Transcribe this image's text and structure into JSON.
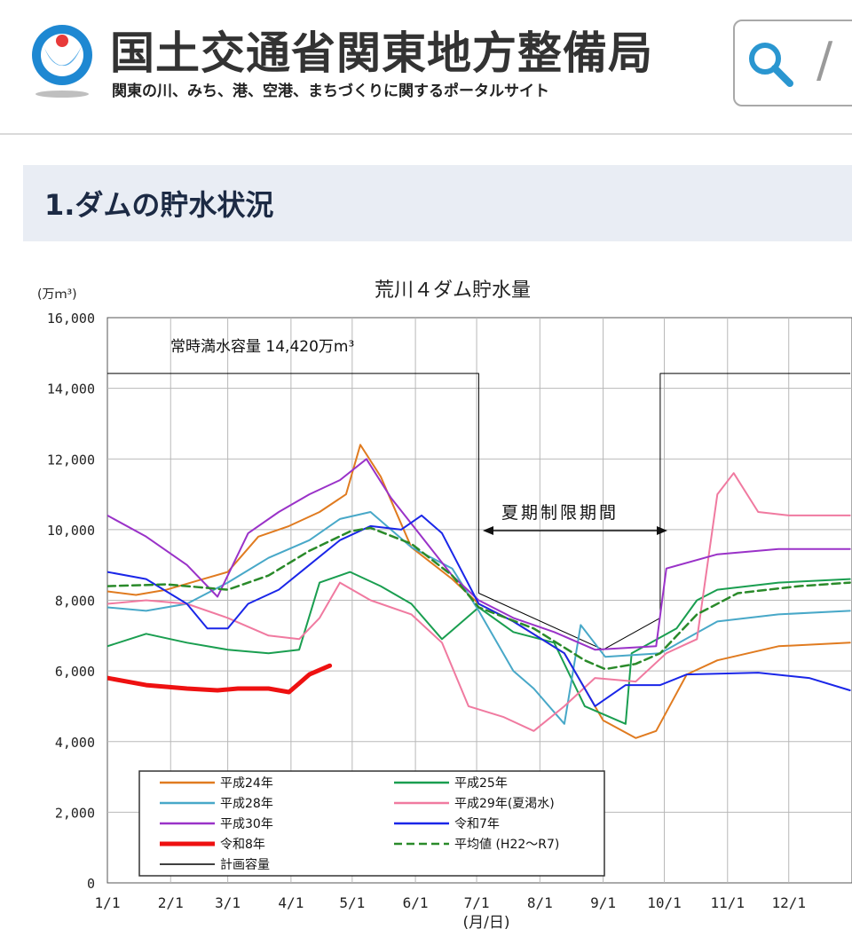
{
  "header": {
    "site_title": "国土交通省関東地方整備局",
    "site_subtitle": "関東の川、みち、港、空港、まちづくりに関するポータルサイト",
    "search_separator": "/"
  },
  "section": {
    "title": "1.ダムの貯水状況"
  },
  "chart_data": {
    "type": "line",
    "title": "荒川４ダム貯水量",
    "ylabel": "(万ｍ³)",
    "xlabel": "(月/日)",
    "ylim": [
      0,
      16000
    ],
    "y_ticks": [
      "0",
      "2,000",
      "4,000",
      "6,000",
      "8,000",
      "10,000",
      "12,000",
      "14,000",
      "16,000"
    ],
    "x_ticks": [
      "1/1",
      "2/1",
      "3/1",
      "4/1",
      "5/1",
      "6/1",
      "7/1",
      "8/1",
      "9/1",
      "10/1",
      "11/1",
      "12/1"
    ],
    "annotations": {
      "full_capacity": "常時満水容量 14,420万m³",
      "summer_limit": "夏期制限期間"
    },
    "legend": [
      "平成24年",
      "平成25年",
      "平成28年",
      "平成29年(夏渇水)",
      "平成30年",
      "令和7年",
      "令和8年",
      "平均値 (H22～R7)",
      "計画容量"
    ],
    "series": [
      {
        "name": "計画容量",
        "color": "#000000",
        "width": 1,
        "dash": "",
        "points": [
          [
            1,
            14420
          ],
          [
            183,
            14420
          ],
          [
            183,
            8200
          ],
          [
            244,
            6600
          ],
          [
            272,
            7500
          ],
          [
            272,
            14420
          ],
          [
            365,
            14420
          ]
        ]
      },
      {
        "name": "平成24年",
        "color": "#e07b20",
        "width": 2,
        "dash": "",
        "points": [
          [
            1,
            8250
          ],
          [
            15,
            8150
          ],
          [
            30,
            8300
          ],
          [
            45,
            8550
          ],
          [
            60,
            8800
          ],
          [
            75,
            9800
          ],
          [
            90,
            10100
          ],
          [
            105,
            10500
          ],
          [
            118,
            11000
          ],
          [
            125,
            12400
          ],
          [
            135,
            11500
          ],
          [
            150,
            9500
          ],
          [
            170,
            8600
          ],
          [
            183,
            7900
          ],
          [
            200,
            7400
          ],
          [
            225,
            6500
          ],
          [
            244,
            4600
          ],
          [
            260,
            4100
          ],
          [
            270,
            4300
          ],
          [
            285,
            5900
          ],
          [
            300,
            6300
          ],
          [
            330,
            6700
          ],
          [
            365,
            6800
          ]
        ]
      },
      {
        "name": "平成25年",
        "color": "#1a9e50",
        "width": 2,
        "dash": "",
        "points": [
          [
            1,
            6700
          ],
          [
            20,
            7050
          ],
          [
            40,
            6800
          ],
          [
            60,
            6600
          ],
          [
            80,
            6500
          ],
          [
            95,
            6600
          ],
          [
            105,
            8500
          ],
          [
            120,
            8800
          ],
          [
            135,
            8400
          ],
          [
            150,
            7900
          ],
          [
            165,
            6900
          ],
          [
            183,
            7800
          ],
          [
            200,
            7100
          ],
          [
            220,
            6800
          ],
          [
            235,
            5000
          ],
          [
            255,
            4500
          ],
          [
            258,
            6500
          ],
          [
            280,
            7200
          ],
          [
            290,
            8000
          ],
          [
            300,
            8300
          ],
          [
            330,
            8500
          ],
          [
            365,
            8600
          ]
        ]
      },
      {
        "name": "平成28年",
        "color": "#48a8c8",
        "width": 2,
        "dash": "",
        "points": [
          [
            1,
            7800
          ],
          [
            20,
            7700
          ],
          [
            40,
            7900
          ],
          [
            60,
            8500
          ],
          [
            80,
            9200
          ],
          [
            100,
            9700
          ],
          [
            115,
            10300
          ],
          [
            130,
            10500
          ],
          [
            150,
            9500
          ],
          [
            170,
            8900
          ],
          [
            183,
            7700
          ],
          [
            200,
            6000
          ],
          [
            210,
            5500
          ],
          [
            225,
            4500
          ],
          [
            233,
            7300
          ],
          [
            245,
            6400
          ],
          [
            272,
            6500
          ],
          [
            300,
            7400
          ],
          [
            330,
            7600
          ],
          [
            365,
            7700
          ]
        ]
      },
      {
        "name": "平成29年(夏渇水)",
        "color": "#f07aa0",
        "width": 2,
        "dash": "",
        "points": [
          [
            1,
            7900
          ],
          [
            20,
            8000
          ],
          [
            40,
            7900
          ],
          [
            60,
            7500
          ],
          [
            80,
            7000
          ],
          [
            95,
            6900
          ],
          [
            105,
            7500
          ],
          [
            115,
            8500
          ],
          [
            130,
            8000
          ],
          [
            150,
            7600
          ],
          [
            165,
            6800
          ],
          [
            178,
            5000
          ],
          [
            195,
            4700
          ],
          [
            210,
            4300
          ],
          [
            225,
            5000
          ],
          [
            240,
            5800
          ],
          [
            260,
            5700
          ],
          [
            275,
            6500
          ],
          [
            290,
            6900
          ],
          [
            300,
            11000
          ],
          [
            308,
            11600
          ],
          [
            320,
            10500
          ],
          [
            335,
            10400
          ],
          [
            365,
            10400
          ]
        ]
      },
      {
        "name": "平成30年",
        "color": "#9a32c8",
        "width": 2,
        "dash": "",
        "points": [
          [
            1,
            10400
          ],
          [
            20,
            9800
          ],
          [
            40,
            9000
          ],
          [
            55,
            8100
          ],
          [
            70,
            9900
          ],
          [
            85,
            10500
          ],
          [
            100,
            11000
          ],
          [
            115,
            11400
          ],
          [
            128,
            12000
          ],
          [
            140,
            10900
          ],
          [
            155,
            9800
          ],
          [
            170,
            8700
          ],
          [
            183,
            8000
          ],
          [
            200,
            7500
          ],
          [
            220,
            7100
          ],
          [
            240,
            6600
          ],
          [
            270,
            6700
          ],
          [
            275,
            8900
          ],
          [
            300,
            9300
          ],
          [
            330,
            9450
          ],
          [
            365,
            9450
          ]
        ]
      },
      {
        "name": "令和7年",
        "color": "#1a26e8",
        "width": 2,
        "dash": "",
        "points": [
          [
            1,
            8800
          ],
          [
            20,
            8600
          ],
          [
            40,
            7900
          ],
          [
            50,
            7200
          ],
          [
            60,
            7200
          ],
          [
            70,
            7900
          ],
          [
            85,
            8300
          ],
          [
            100,
            9000
          ],
          [
            115,
            9700
          ],
          [
            130,
            10100
          ],
          [
            145,
            10000
          ],
          [
            155,
            10400
          ],
          [
            165,
            9900
          ],
          [
            183,
            7900
          ],
          [
            200,
            7400
          ],
          [
            225,
            6500
          ],
          [
            240,
            5000
          ],
          [
            255,
            5600
          ],
          [
            272,
            5600
          ],
          [
            285,
            5900
          ],
          [
            320,
            5950
          ],
          [
            345,
            5800
          ],
          [
            365,
            5450
          ]
        ]
      },
      {
        "name": "令和8年",
        "color": "#ee1111",
        "width": 5,
        "dash": "",
        "points": [
          [
            1,
            5800
          ],
          [
            20,
            5600
          ],
          [
            40,
            5500
          ],
          [
            55,
            5450
          ],
          [
            65,
            5500
          ],
          [
            80,
            5500
          ],
          [
            90,
            5400
          ],
          [
            95,
            5650
          ],
          [
            100,
            5900
          ],
          [
            110,
            6150
          ]
        ]
      },
      {
        "name": "平均値 (H22～R7)",
        "color": "#2a8a2a",
        "width": 2.5,
        "dash": "9,5",
        "points": [
          [
            1,
            8400
          ],
          [
            30,
            8450
          ],
          [
            60,
            8300
          ],
          [
            80,
            8700
          ],
          [
            100,
            9400
          ],
          [
            120,
            9950
          ],
          [
            130,
            10050
          ],
          [
            150,
            9600
          ],
          [
            170,
            8700
          ],
          [
            183,
            7800
          ],
          [
            210,
            7200
          ],
          [
            235,
            6300
          ],
          [
            245,
            6050
          ],
          [
            260,
            6200
          ],
          [
            272,
            6500
          ],
          [
            290,
            7600
          ],
          [
            310,
            8200
          ],
          [
            340,
            8400
          ],
          [
            365,
            8500
          ]
        ]
      }
    ]
  }
}
